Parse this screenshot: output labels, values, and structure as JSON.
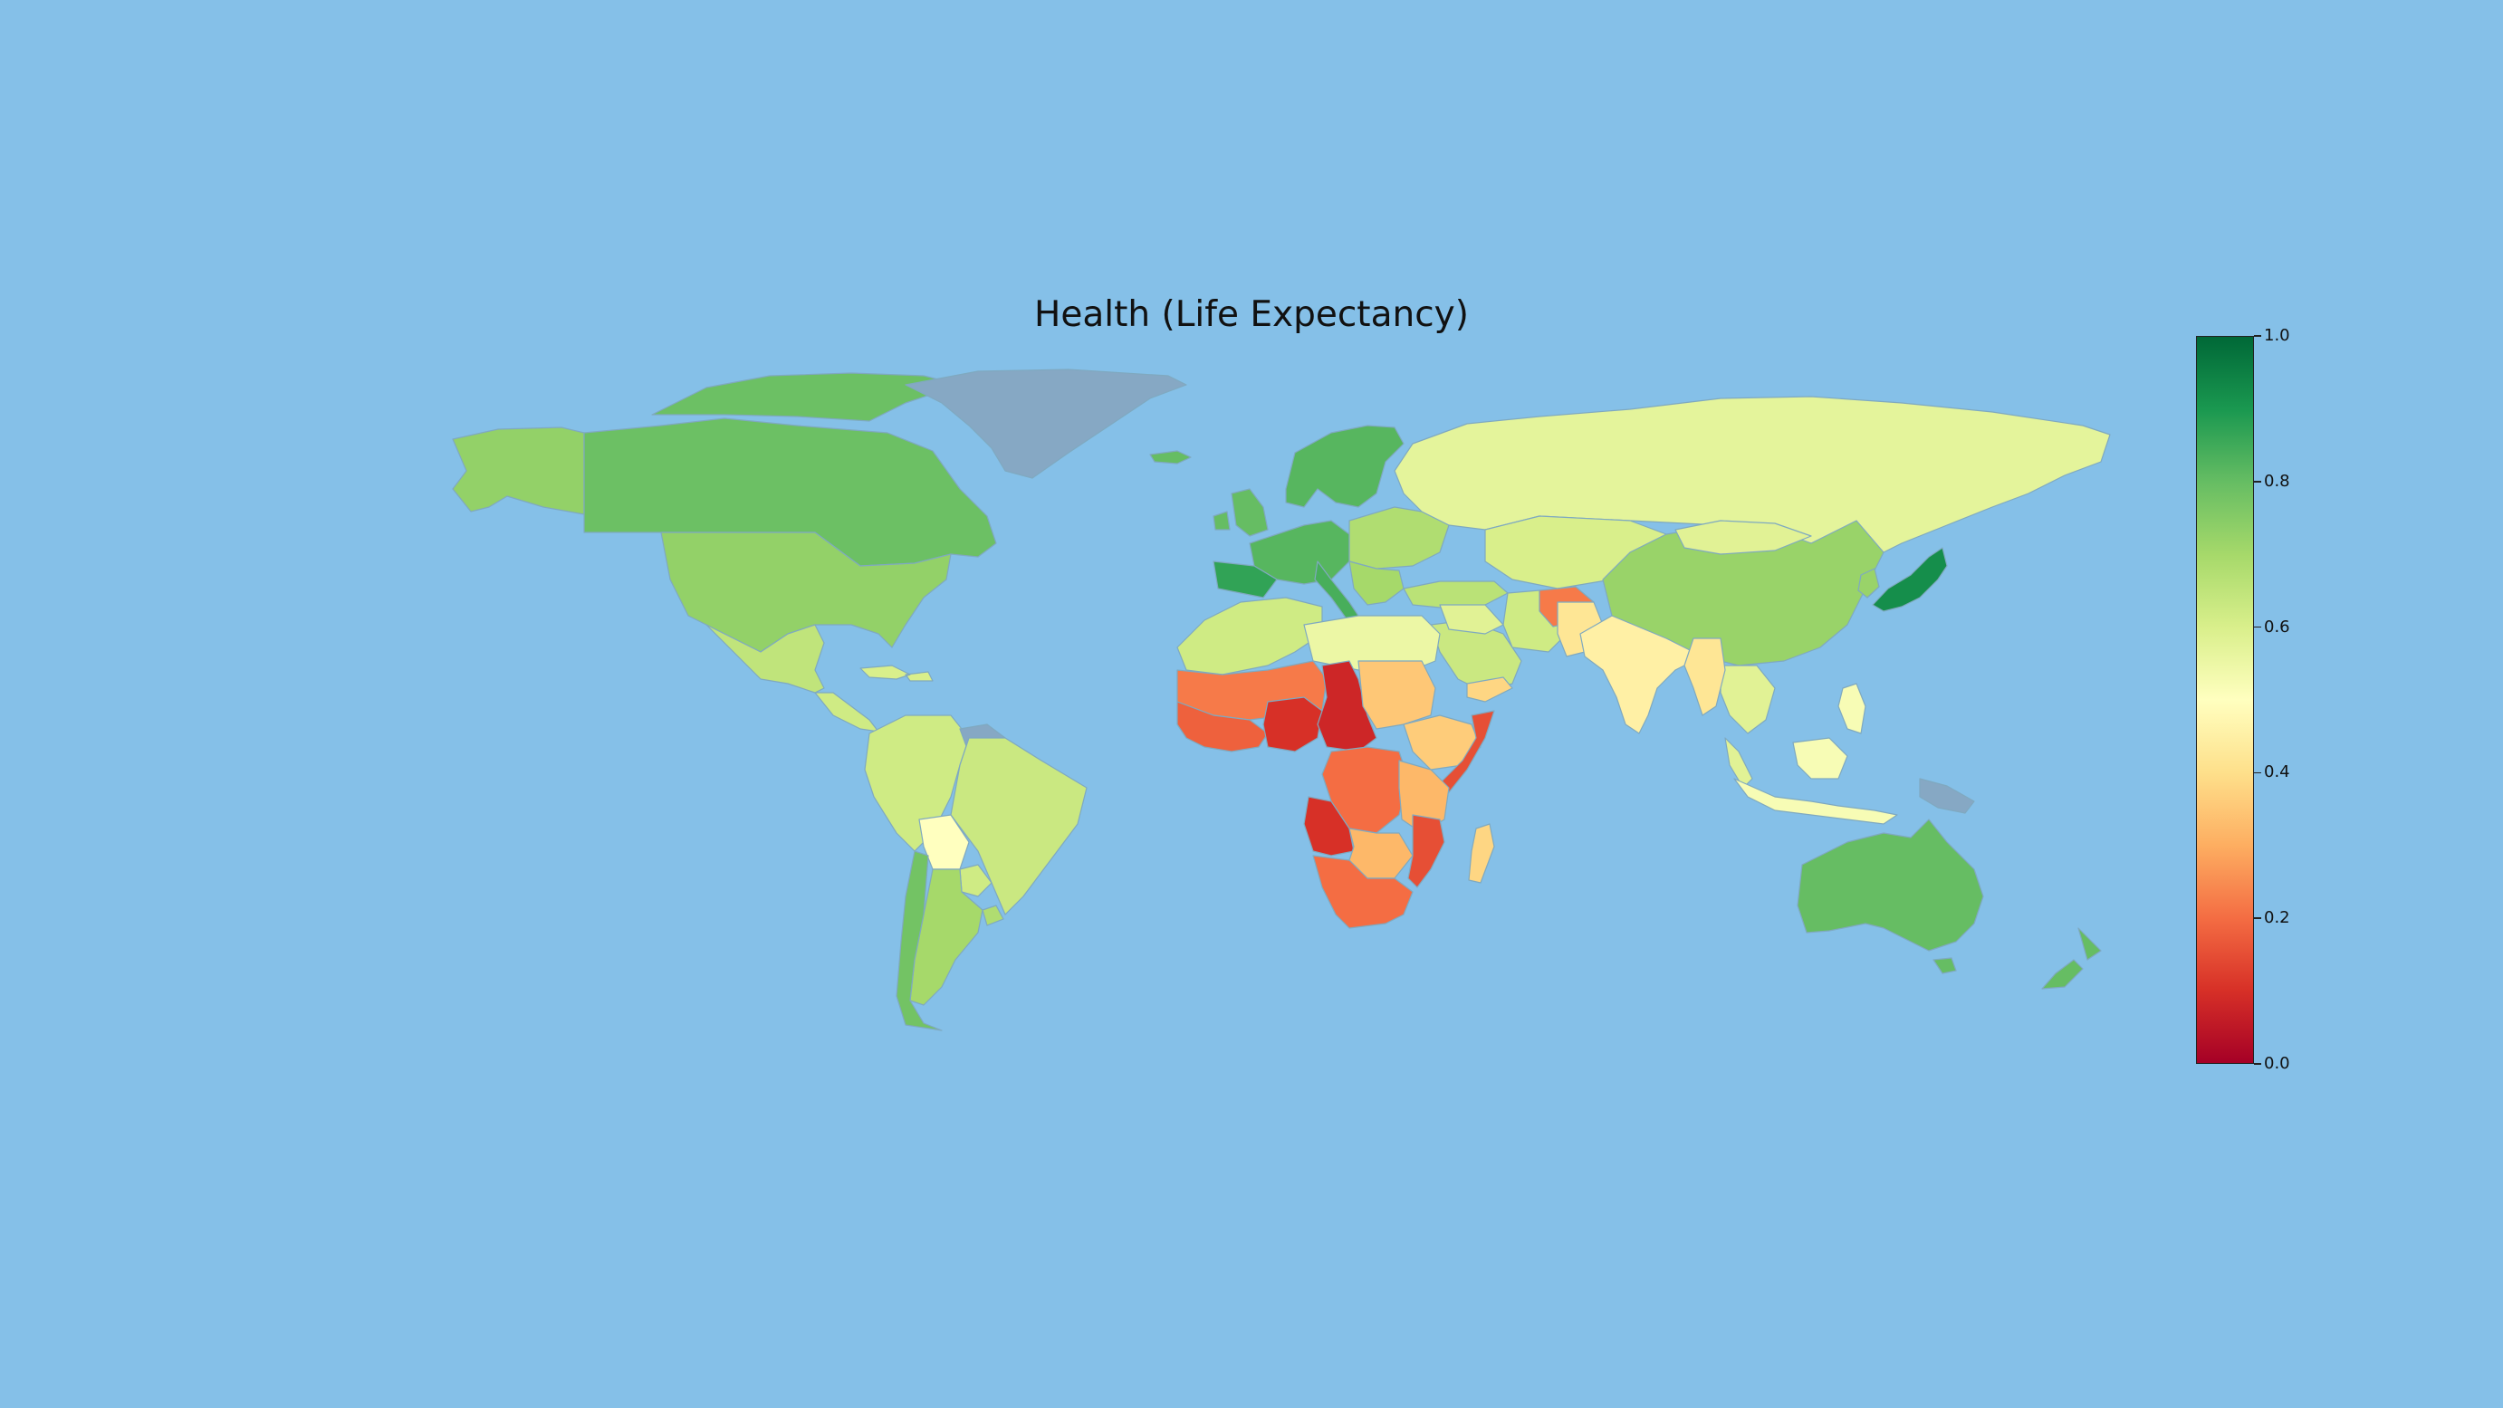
{
  "title": "Health (Life Expectancy)",
  "colors": {
    "ocean": "#85c0e8",
    "no_data": "#86a8c4",
    "scale": [
      "#a50026",
      "#d73027",
      "#f46d43",
      "#fdae61",
      "#fee08b",
      "#ffffbf",
      "#d9ef8b",
      "#a6d96a",
      "#66bd63",
      "#1a9850",
      "#006837"
    ]
  },
  "colorbar": {
    "min": 0.0,
    "max": 1.0,
    "ticks": [
      "0.0",
      "0.2",
      "0.4",
      "0.6",
      "0.8",
      "1.0"
    ]
  },
  "regions": [
    {
      "name": "Alaska",
      "value": 0.73
    },
    {
      "name": "Canada",
      "value": 0.79
    },
    {
      "name": "Canadian Arctic Islands",
      "value": 0.79
    },
    {
      "name": "United States",
      "value": 0.73
    },
    {
      "name": "Greenland",
      "value": null
    },
    {
      "name": "Iceland",
      "value": 0.8
    },
    {
      "name": "Mexico",
      "value": 0.65
    },
    {
      "name": "Central America",
      "value": 0.62
    },
    {
      "name": "Caribbean",
      "value": 0.6
    },
    {
      "name": "Colombia / Venezuela / Ecuador / Peru",
      "value": 0.62
    },
    {
      "name": "Guianas",
      "value": null
    },
    {
      "name": "Brazil",
      "value": 0.63
    },
    {
      "name": "Bolivia",
      "value": 0.5
    },
    {
      "name": "Paraguay",
      "value": 0.62
    },
    {
      "name": "Argentina",
      "value": 0.7
    },
    {
      "name": "Chile",
      "value": 0.78
    },
    {
      "name": "Uruguay",
      "value": 0.68
    },
    {
      "name": "United Kingdom / Ireland",
      "value": 0.8
    },
    {
      "name": "Scandinavia",
      "value": 0.82
    },
    {
      "name": "Western Europe",
      "value": 0.82
    },
    {
      "name": "Spain / Portugal",
      "value": 0.87
    },
    {
      "name": "Italy",
      "value": 0.84
    },
    {
      "name": "Eastern Europe",
      "value": 0.68
    },
    {
      "name": "Balkans",
      "value": 0.7
    },
    {
      "name": "Russia",
      "value": 0.57
    },
    {
      "name": "Kazakhstan / Central Asia",
      "value": 0.6
    },
    {
      "name": "Turkey",
      "value": 0.66
    },
    {
      "name": "Iran",
      "value": 0.62
    },
    {
      "name": "Saudi Arabia / Arabian Peninsula",
      "value": 0.63
    },
    {
      "name": "Yemen",
      "value": 0.38
    },
    {
      "name": "Iraq / Syria",
      "value": 0.58
    },
    {
      "name": "Afghanistan",
      "value": 0.22
    },
    {
      "name": "Pakistan",
      "value": 0.42
    },
    {
      "name": "India",
      "value": 0.45
    },
    {
      "name": "China",
      "value": 0.72
    },
    {
      "name": "Mongolia",
      "value": 0.58
    },
    {
      "name": "Japan",
      "value": 0.92
    },
    {
      "name": "Korea",
      "value": 0.72
    },
    {
      "name": "Southeast Asia",
      "value": 0.58
    },
    {
      "name": "Myanmar",
      "value": 0.42
    },
    {
      "name": "Indonesia / Philippines",
      "value": 0.52
    },
    {
      "name": "Papua New Guinea",
      "value": null
    },
    {
      "name": "Australia",
      "value": 0.8
    },
    {
      "name": "New Zealand",
      "value": 0.8
    },
    {
      "name": "North Africa",
      "value": 0.62
    },
    {
      "name": "Libya / Egypt",
      "value": 0.55
    },
    {
      "name": "Sahel",
      "value": 0.22
    },
    {
      "name": "West Africa",
      "value": 0.18
    },
    {
      "name": "Nigeria",
      "value": 0.1
    },
    {
      "name": "Chad / Central African Republic",
      "value": 0.08
    },
    {
      "name": "Sudan",
      "value": 0.35
    },
    {
      "name": "Ethiopia",
      "value": 0.36
    },
    {
      "name": "Somalia",
      "value": 0.15
    },
    {
      "name": "Congo (DRC)",
      "value": 0.2
    },
    {
      "name": "East Africa",
      "value": 0.32
    },
    {
      "name": "Angola",
      "value": 0.1
    },
    {
      "name": "Zambia / Zimbabwe",
      "value": 0.32
    },
    {
      "name": "Mozambique",
      "value": 0.15
    },
    {
      "name": "Southern Africa",
      "value": 0.2
    },
    {
      "name": "Madagascar",
      "value": 0.38
    }
  ]
}
